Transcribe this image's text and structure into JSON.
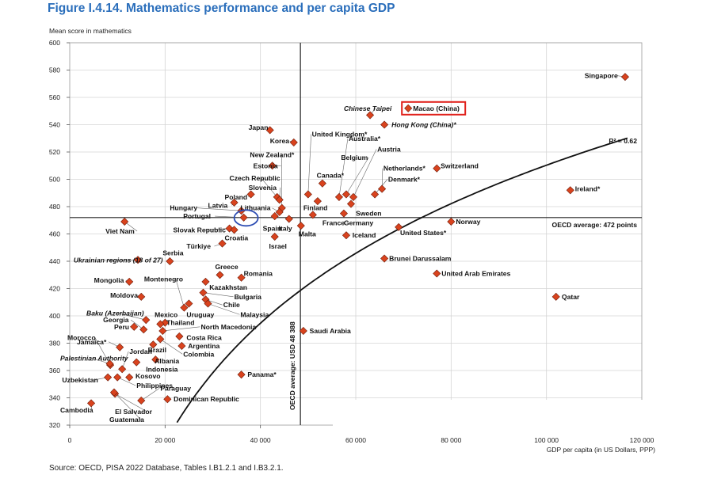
{
  "figure": {
    "title": "Figure I.4.14. Mathematics performance and per capita GDP",
    "source": "Source: OECD, PISA 2022 Database, Tables I.B1.2.1 and I.B3.2.1."
  },
  "colors": {
    "title": "#2a6ebb",
    "marker_fill": "#d9431e",
    "highlight_box": "#e0201b",
    "highlight_circle": "#2d4db3",
    "trend": "#111111"
  },
  "chart_data": {
    "type": "scatter",
    "xlabel": "GDP per capita (in US Dollars, PPP)",
    "ylabel": "Mean score in mathematics",
    "xlim": [
      0,
      120000
    ],
    "ylim": [
      320,
      600
    ],
    "x_ticks": [
      0,
      20000,
      40000,
      60000,
      80000,
      100000,
      120000
    ],
    "x_tick_labels": [
      "0",
      "20 000",
      "40 000",
      "60 000",
      "80 000",
      "100 000",
      "120 000"
    ],
    "y_ticks": [
      320,
      340,
      360,
      380,
      400,
      420,
      440,
      460,
      480,
      500,
      520,
      540,
      560,
      580,
      600
    ],
    "grid": true,
    "oecd_avg_score": 472,
    "oecd_avg_score_label": "OECD average: 472 points",
    "oecd_avg_gdp": 48388,
    "oecd_avg_gdp_label": "OECD average: USD 48 388",
    "r2_label": "R² = 0.62",
    "trend": {
      "a": -71.3,
      "b": 126.3
    },
    "highlight_box": "Macao (China)",
    "highlight_circle": "Portugal",
    "points": [
      {
        "name": "Singapore",
        "x": 116500,
        "y": 575,
        "lx": 108000,
        "ly": 576
      },
      {
        "name": "Macao (China)",
        "x": 71000,
        "y": 552,
        "lx": 72000,
        "ly": 552
      },
      {
        "name": "Chinese Taipei",
        "x": 63000,
        "y": 547,
        "lx": 57500,
        "ly": 552,
        "italic": true
      },
      {
        "name": "Hong Kong (China)*",
        "x": 66000,
        "y": 540,
        "lx": 67500,
        "ly": 540,
        "italic": true
      },
      {
        "name": "Japan",
        "x": 42000,
        "y": 536,
        "lx": 37500,
        "ly": 538
      },
      {
        "name": "Korea",
        "x": 47000,
        "y": 527,
        "lx": 42000,
        "ly": 528
      },
      {
        "name": "New Zealand*",
        "x": 44500,
        "y": 479,
        "lx": 37800,
        "ly": 518
      },
      {
        "name": "Estonia",
        "x": 42500,
        "y": 510,
        "lx": 38500,
        "ly": 510
      },
      {
        "name": "Czech Republic",
        "x": 43500,
        "y": 487,
        "lx": 33500,
        "ly": 501
      },
      {
        "name": "Slovenia",
        "x": 44000,
        "y": 485,
        "lx": 37500,
        "ly": 494
      },
      {
        "name": "Poland",
        "x": 38000,
        "y": 489,
        "lx": 32500,
        "ly": 487
      },
      {
        "name": "Hungary",
        "x": 36000,
        "y": 477,
        "lx": 21000,
        "ly": 479
      },
      {
        "name": "Latvia",
        "x": 34500,
        "y": 483,
        "lx": 29000,
        "ly": 481
      },
      {
        "name": "Lithuania",
        "x": 44000,
        "y": 476,
        "lx": 35800,
        "ly": 479
      },
      {
        "name": "Portugal",
        "x": 36500,
        "y": 472,
        "lx": 23800,
        "ly": 473
      },
      {
        "name": "Slovak Republic",
        "x": 33500,
        "y": 464,
        "lx": 21700,
        "ly": 463
      },
      {
        "name": "Croatia",
        "x": 34500,
        "y": 463,
        "lx": 32500,
        "ly": 457
      },
      {
        "name": "Türkiye",
        "x": 32000,
        "y": 453,
        "lx": 24500,
        "ly": 451
      },
      {
        "name": "Spain",
        "x": 43000,
        "y": 473,
        "lx": 40500,
        "ly": 464
      },
      {
        "name": "Italy",
        "x": 46000,
        "y": 471,
        "lx": 43800,
        "ly": 464
      },
      {
        "name": "Israel",
        "x": 43000,
        "y": 458,
        "lx": 41800,
        "ly": 451
      },
      {
        "name": "United Kingdom*",
        "x": 50000,
        "y": 489,
        "lx": 50800,
        "ly": 533
      },
      {
        "name": "Australia*",
        "x": 56500,
        "y": 487,
        "lx": 58500,
        "ly": 530
      },
      {
        "name": "Austria",
        "x": 59500,
        "y": 487,
        "lx": 64500,
        "ly": 522
      },
      {
        "name": "Belgium",
        "x": 58000,
        "y": 489,
        "lx": 56900,
        "ly": 516
      },
      {
        "name": "Netherlands*",
        "x": 65500,
        "y": 493,
        "lx": 65800,
        "ly": 508
      },
      {
        "name": "Denmark*",
        "x": 64000,
        "y": 489,
        "lx": 66800,
        "ly": 500
      },
      {
        "name": "Switzerland",
        "x": 77000,
        "y": 508,
        "lx": 77800,
        "ly": 510
      },
      {
        "name": "Canada*",
        "x": 53000,
        "y": 497,
        "lx": 51800,
        "ly": 503
      },
      {
        "name": "Finland",
        "x": 52000,
        "y": 484,
        "lx": 49000,
        "ly": 479
      },
      {
        "name": "Sweden",
        "x": 59000,
        "y": 482,
        "lx": 60000,
        "ly": 475
      },
      {
        "name": "France",
        "x": 51000,
        "y": 474,
        "lx": 53000,
        "ly": 468
      },
      {
        "name": "Germany",
        "x": 57500,
        "y": 475,
        "lx": 57500,
        "ly": 468
      },
      {
        "name": "Malta",
        "x": 48500,
        "y": 466,
        "lx": 48000,
        "ly": 460
      },
      {
        "name": "Iceland",
        "x": 58000,
        "y": 459,
        "lx": 59300,
        "ly": 459
      },
      {
        "name": "United States*",
        "x": 69000,
        "y": 465,
        "lx": 69300,
        "ly": 461
      },
      {
        "name": "Norway",
        "x": 80000,
        "y": 469,
        "lx": 81000,
        "ly": 469
      },
      {
        "name": "Ireland*",
        "x": 105000,
        "y": 492,
        "lx": 106000,
        "ly": 493
      },
      {
        "name": "Qatar",
        "x": 102000,
        "y": 414,
        "lx": 103200,
        "ly": 414
      },
      {
        "name": "Brunei Darussalam",
        "x": 66000,
        "y": 442,
        "lx": 67000,
        "ly": 442
      },
      {
        "name": "United Arab Emirates",
        "x": 77000,
        "y": 431,
        "lx": 78000,
        "ly": 431
      },
      {
        "name": "Saudi Arabia",
        "x": 49000,
        "y": 389,
        "lx": 50300,
        "ly": 389
      },
      {
        "name": "Viet Nam",
        "x": 11500,
        "y": 469,
        "lx": 7500,
        "ly": 462
      },
      {
        "name": "Ukrainian regions (18 of 27)",
        "x": 14300,
        "y": 441,
        "lx": 800,
        "ly": 441,
        "italic": true
      },
      {
        "name": "Serbia",
        "x": 21000,
        "y": 440,
        "lx": 19500,
        "ly": 446
      },
      {
        "name": "Mongolia",
        "x": 12500,
        "y": 425,
        "lx": 5100,
        "ly": 426
      },
      {
        "name": "Montenegro",
        "x": 24000,
        "y": 406,
        "lx": 15600,
        "ly": 427
      },
      {
        "name": "Moldova",
        "x": 15000,
        "y": 414,
        "lx": 8500,
        "ly": 415
      },
      {
        "name": "Greece",
        "x": 31500,
        "y": 430,
        "lx": 30500,
        "ly": 436
      },
      {
        "name": "Romania",
        "x": 36000,
        "y": 428,
        "lx": 36500,
        "ly": 431
      },
      {
        "name": "Kazakhstan",
        "x": 28500,
        "y": 425,
        "lx": 29300,
        "ly": 421
      },
      {
        "name": "Bulgaria",
        "x": 28000,
        "y": 417,
        "lx": 34500,
        "ly": 414
      },
      {
        "name": "Chile",
        "x": 28500,
        "y": 412,
        "lx": 32200,
        "ly": 408
      },
      {
        "name": "Malaysia",
        "x": 29000,
        "y": 409,
        "lx": 35800,
        "ly": 401
      },
      {
        "name": "Uruguay",
        "x": 25000,
        "y": 409,
        "lx": 24500,
        "ly": 401
      },
      {
        "name": "Mexico",
        "x": 20000,
        "y": 395,
        "lx": 17800,
        "ly": 401
      },
      {
        "name": "Baku (Azerbaijan)",
        "x": 16000,
        "y": 397,
        "lx": 3500,
        "ly": 402,
        "italic": true
      },
      {
        "name": "Georgia",
        "x": 15500,
        "y": 390,
        "lx": 7000,
        "ly": 397
      },
      {
        "name": "Thailand",
        "x": 19000,
        "y": 394,
        "lx": 20300,
        "ly": 395
      },
      {
        "name": "Peru",
        "x": 13500,
        "y": 392,
        "lx": 9300,
        "ly": 392
      },
      {
        "name": "North Macedonia",
        "x": 19500,
        "y": 389,
        "lx": 27500,
        "ly": 392
      },
      {
        "name": "Costa Rica",
        "x": 23000,
        "y": 385,
        "lx": 24500,
        "ly": 384
      },
      {
        "name": "Argentina",
        "x": 23500,
        "y": 378,
        "lx": 24800,
        "ly": 378
      },
      {
        "name": "Colombia",
        "x": 19000,
        "y": 383,
        "lx": 23800,
        "ly": 372
      },
      {
        "name": "Brazil",
        "x": 17500,
        "y": 379,
        "lx": 16400,
        "ly": 375
      },
      {
        "name": "Jordan",
        "x": 11000,
        "y": 361,
        "lx": 12500,
        "ly": 374
      },
      {
        "name": "Morocco",
        "x": 8500,
        "y": 364,
        "lx": -500,
        "ly": 384
      },
      {
        "name": "Jamaica*",
        "x": 10500,
        "y": 377,
        "lx": 1500,
        "ly": 381
      },
      {
        "name": "Palestinian Authority",
        "x": 8400,
        "y": 365,
        "lx": -2000,
        "ly": 369,
        "italic": true
      },
      {
        "name": "Albania",
        "x": 18000,
        "y": 368,
        "lx": 17800,
        "ly": 367
      },
      {
        "name": "Indonesia",
        "x": 14000,
        "y": 366,
        "lx": 16000,
        "ly": 361
      },
      {
        "name": "Kosovo",
        "x": 12500,
        "y": 355,
        "lx": 13800,
        "ly": 356
      },
      {
        "name": "Panama*",
        "x": 36000,
        "y": 357,
        "lx": 37300,
        "ly": 357
      },
      {
        "name": "Uzbekistan",
        "x": 8000,
        "y": 355,
        "lx": -1600,
        "ly": 353
      },
      {
        "name": "Philippines",
        "x": 10000,
        "y": 355,
        "lx": 14000,
        "ly": 349
      },
      {
        "name": "Paraguay",
        "x": 15000,
        "y": 338,
        "lx": 19000,
        "ly": 347
      },
      {
        "name": "Dominican Republic",
        "x": 20500,
        "y": 339,
        "lx": 21800,
        "ly": 339
      },
      {
        "name": "Cambodia",
        "x": 4500,
        "y": 336,
        "lx": -2000,
        "ly": 331
      },
      {
        "name": "El Salvador",
        "x": 9500,
        "y": 343,
        "lx": 9500,
        "ly": 330
      },
      {
        "name": "Guatemala",
        "x": 9300,
        "y": 344,
        "lx": 8300,
        "ly": 324
      }
    ]
  }
}
